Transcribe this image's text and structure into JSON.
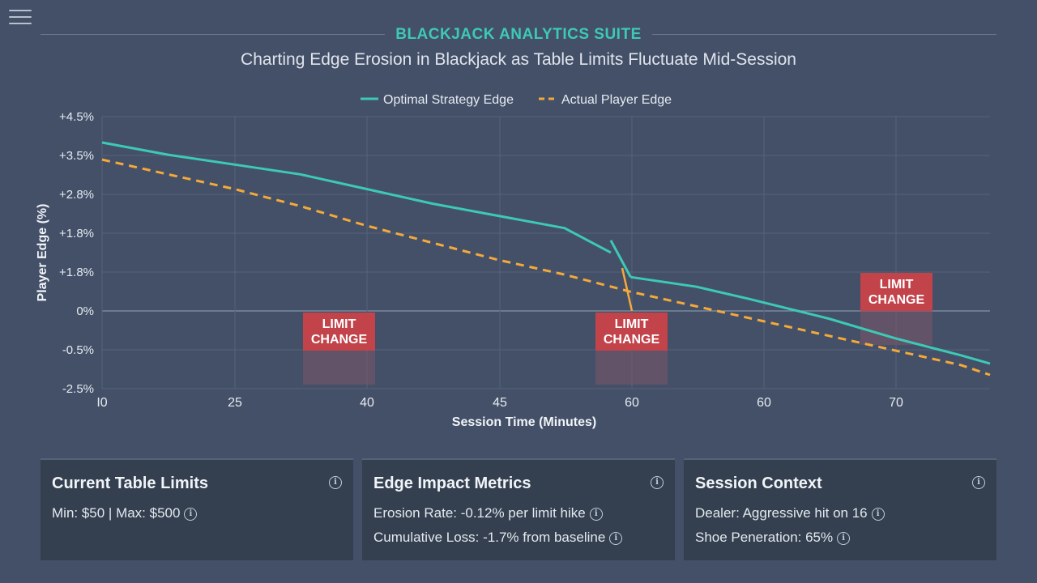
{
  "header": {
    "suite_title": "BLACKJACK ANALYTICS SUITE",
    "menu_icon": "hamburger-menu-icon"
  },
  "chart_data": {
    "type": "line",
    "title": "Charting Edge Erosion in Blackjack as Table Limits Fluctuate Mid-Session",
    "xlabel": "Session Time (Minutes)",
    "ylabel": "Player Edge (%)",
    "x_tick_labels": [
      "I0",
      "25",
      "40",
      "45",
      "60",
      "60",
      "70"
    ],
    "y_tick_labels": [
      "+4.5%",
      "+3.5%",
      "+2.8%",
      "+1.8%",
      "+1.8%",
      "0%",
      "-0.5%",
      "-2.5%"
    ],
    "legend_position": "top-center",
    "grid": true,
    "series": [
      {
        "name": "Optimal Strategy Edge",
        "color": "#3ec9b5",
        "style": "solid",
        "points": [
          [
            0.0,
            3.8
          ],
          [
            0.5,
            3.55
          ],
          [
            1.0,
            3.35
          ],
          [
            1.5,
            3.15
          ],
          [
            2.0,
            2.85
          ],
          [
            2.5,
            2.55
          ],
          [
            3.0,
            2.3
          ],
          [
            3.5,
            2.05
          ],
          [
            3.85,
            1.55
          ],
          [
            3.85,
            1.8
          ],
          [
            4.0,
            1.05
          ],
          [
            4.0,
            1.05
          ],
          [
            4.5,
            0.85
          ],
          [
            4.9,
            0.6
          ],
          [
            5.5,
            0.2
          ],
          [
            6.0,
            -0.2
          ],
          [
            6.5,
            -0.55
          ],
          [
            6.72,
            -0.72
          ]
        ],
        "segments": [
          [
            0,
            8
          ],
          [
            9,
            10
          ],
          [
            11,
            17
          ]
        ]
      },
      {
        "name": "Actual Player Edge",
        "color": "#f4a93a",
        "style": "dashed",
        "points": [
          [
            0.0,
            3.45
          ],
          [
            0.5,
            3.15
          ],
          [
            1.0,
            2.85
          ],
          [
            1.5,
            2.5
          ],
          [
            2.0,
            2.1
          ],
          [
            2.5,
            1.75
          ],
          [
            3.0,
            1.4
          ],
          [
            3.5,
            1.1
          ],
          [
            4.0,
            0.75
          ],
          [
            4.5,
            0.45
          ],
          [
            5.0,
            0.15
          ],
          [
            5.5,
            -0.15
          ],
          [
            6.0,
            -0.45
          ],
          [
            6.5,
            -0.75
          ],
          [
            6.72,
            -0.95
          ]
        ]
      }
    ],
    "annotations": [
      {
        "label_lines": [
          "LIMIT",
          "CHANGE"
        ],
        "x_center": 1.75,
        "y_top": 0.0
      },
      {
        "label_lines": [
          "LIMIT",
          "CHANGE"
        ],
        "x_center": 4.0,
        "y_top": 0.0
      },
      {
        "label_lines": [
          "LIMIT",
          "CHANGE"
        ],
        "x_center": 5.95,
        "y_top": 1.0
      }
    ]
  },
  "panels": [
    {
      "title": "Current Table Limits",
      "line1": "Min: $50 | Max: $500",
      "line2": ""
    },
    {
      "title": "Edge Impact Metrics",
      "line1": "Erosion Rate: -0.12% per limit hike",
      "line2": "Cumulative Loss: -1.7% from baseline"
    },
    {
      "title": "Session Context",
      "line1": "Dealer: Aggressive hit on 16",
      "line2": "Shoe Peneration: 65%"
    }
  ],
  "colors": {
    "background": "#435068",
    "accent": "#3ec9b5",
    "actual": "#f4a93a",
    "limit_box": "#c2434a",
    "panel": "#34404f"
  }
}
